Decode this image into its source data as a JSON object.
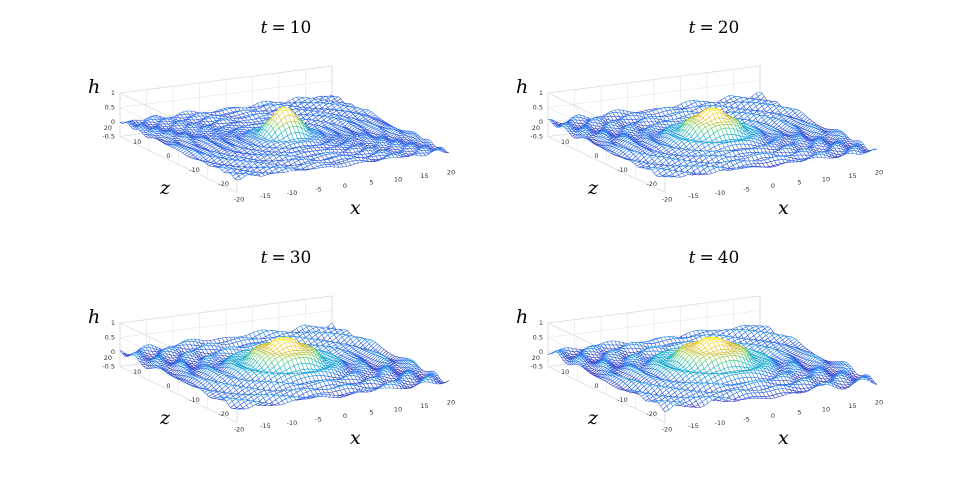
{
  "chart_data": [
    {
      "type": "surface",
      "title_var": "t",
      "title_eq": "=",
      "title_val": "10",
      "t": 10,
      "xlabel": "x",
      "ylabel": "z",
      "zlabel": "h",
      "xlim": [
        -20,
        20
      ],
      "ylim": [
        -20,
        20
      ],
      "zlim": [
        -0.5,
        1
      ],
      "x_ticks": [
        "-20",
        "-15",
        "-10",
        "-5",
        "0",
        "5",
        "10",
        "15",
        "20"
      ],
      "y_ticks": [
        "-20",
        "-10",
        "0",
        "10",
        "20"
      ],
      "z_ticks": [
        "-0.5",
        "0",
        "0.5",
        "1"
      ],
      "peak_height": 1.0,
      "peak_width": 2.4,
      "ripple_amplitude": 0.05,
      "ripple_wavelength": 2.6,
      "grid": true
    },
    {
      "type": "surface",
      "title_var": "t",
      "title_eq": "=",
      "title_val": "20",
      "t": 20,
      "xlabel": "x",
      "ylabel": "z",
      "zlabel": "h",
      "xlim": [
        -20,
        20
      ],
      "ylim": [
        -20,
        20
      ],
      "zlim": [
        -0.5,
        1
      ],
      "x_ticks": [
        "-20",
        "-15",
        "-10",
        "-5",
        "0",
        "5",
        "10",
        "15",
        "20"
      ],
      "y_ticks": [
        "-20",
        "-10",
        "0",
        "10",
        "20"
      ],
      "z_ticks": [
        "-0.5",
        "0",
        "0.5",
        "1"
      ],
      "peak_height": 0.95,
      "peak_width": 3.6,
      "ripple_amplitude": 0.08,
      "ripple_wavelength": 3.4,
      "grid": true
    },
    {
      "type": "surface",
      "title_var": "t",
      "title_eq": "=",
      "title_val": "30",
      "t": 30,
      "xlabel": "x",
      "ylabel": "z",
      "zlabel": "h",
      "xlim": [
        -20,
        20
      ],
      "ylim": [
        -20,
        20
      ],
      "zlim": [
        -0.5,
        1
      ],
      "x_ticks": [
        "-20",
        "-15",
        "-10",
        "-5",
        "0",
        "5",
        "10",
        "15",
        "20"
      ],
      "y_ticks": [
        "-20",
        "-10",
        "0",
        "10",
        "20"
      ],
      "z_ticks": [
        "-0.5",
        "0",
        "0.5",
        "1"
      ],
      "peak_height": 0.95,
      "peak_width": 4.4,
      "ripple_amplitude": 0.1,
      "ripple_wavelength": 4.0,
      "grid": true
    },
    {
      "type": "surface",
      "title_var": "t",
      "title_eq": "=",
      "title_val": "40",
      "t": 40,
      "xlabel": "x",
      "ylabel": "z",
      "zlabel": "h",
      "xlim": [
        -20,
        20
      ],
      "ylim": [
        -20,
        20
      ],
      "zlim": [
        -0.5,
        1
      ],
      "x_ticks": [
        "-20",
        "-15",
        "-10",
        "-5",
        "0",
        "5",
        "10",
        "15",
        "20"
      ],
      "y_ticks": [
        "-20",
        "-10",
        "0",
        "10",
        "20"
      ],
      "z_ticks": [
        "-0.5",
        "0",
        "0.5",
        "1"
      ],
      "peak_height": 0.95,
      "peak_width": 4.8,
      "ripple_amplitude": 0.1,
      "ripple_wavelength": 4.2,
      "grid": true
    }
  ],
  "colormap": [
    "#3e26a8",
    "#2f6cf0",
    "#1aa5de",
    "#23c1a8",
    "#7ccd5a",
    "#d8bd35",
    "#fbd226",
    "#f9fb15"
  ],
  "mesh_color": "#3d5ff0"
}
